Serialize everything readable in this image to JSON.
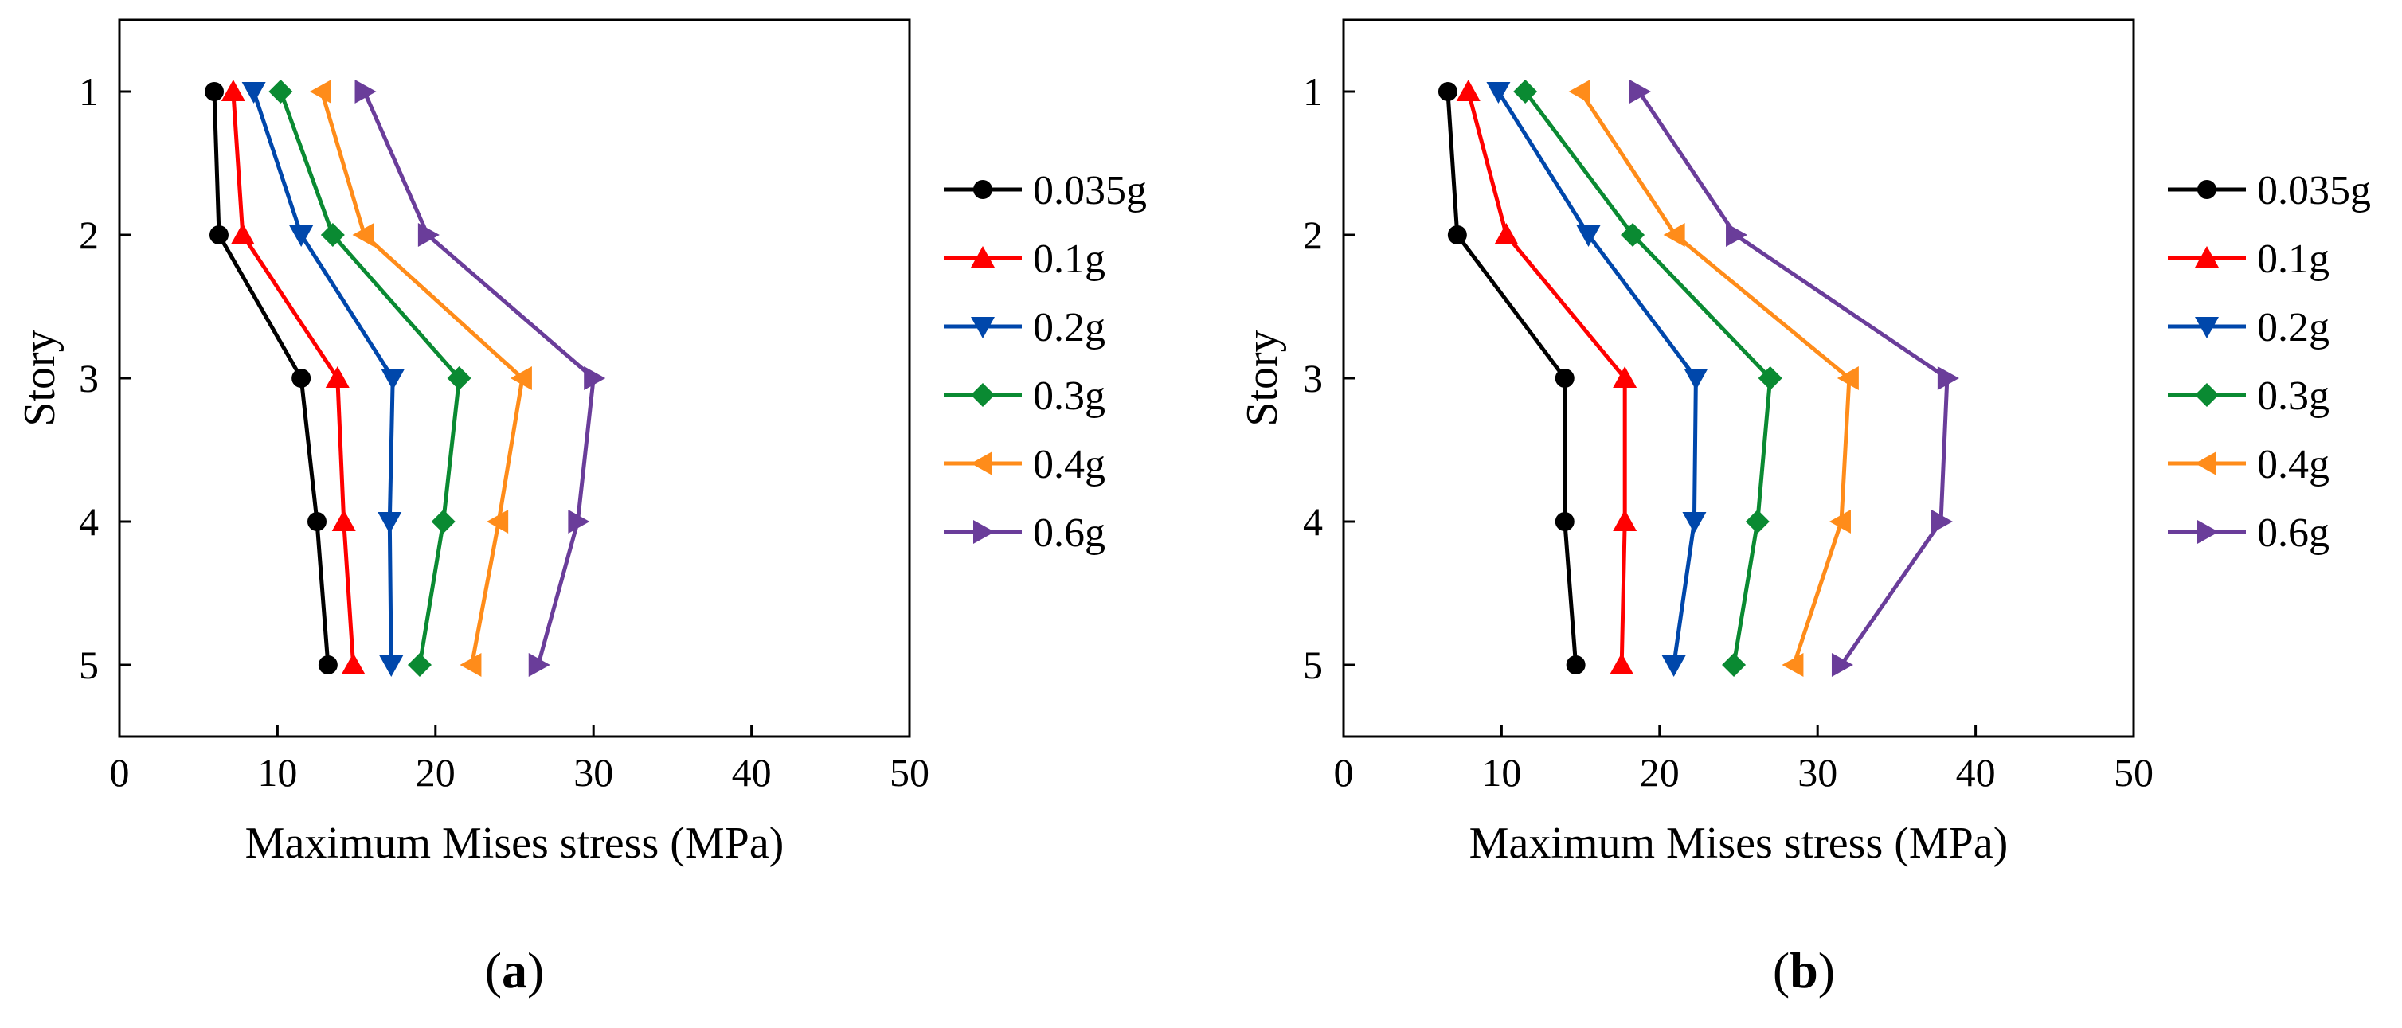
{
  "chart_data": [
    {
      "type": "line",
      "panel_label": "a",
      "xlabel": "Maximum Mises stress (MPa)",
      "ylabel": "Story",
      "xlim": [
        0,
        50
      ],
      "ylim": [
        1,
        5
      ],
      "y_inverted": true,
      "xticks": [
        0,
        10,
        20,
        30,
        40,
        50
      ],
      "yticks": [
        1,
        2,
        3,
        4,
        5
      ],
      "grid": false,
      "legend_position": "right-outside",
      "series": [
        {
          "name": "0.035g",
          "color": "#000000",
          "marker": "circle",
          "x": [
            6.0,
            6.3,
            11.5,
            12.5,
            13.2
          ],
          "y": [
            1,
            2,
            3,
            4,
            5
          ]
        },
        {
          "name": "0.1g",
          "color": "#ff0000",
          "marker": "triangle-up",
          "x": [
            7.2,
            7.8,
            13.8,
            14.2,
            14.8
          ],
          "y": [
            1,
            2,
            3,
            4,
            5
          ]
        },
        {
          "name": "0.2g",
          "color": "#0047ab",
          "marker": "triangle-down",
          "x": [
            8.5,
            11.5,
            17.3,
            17.1,
            17.2
          ],
          "y": [
            1,
            2,
            3,
            4,
            5
          ]
        },
        {
          "name": "0.3g",
          "color": "#0a8a32",
          "marker": "diamond",
          "x": [
            10.2,
            13.5,
            21.5,
            20.5,
            19.0
          ],
          "y": [
            1,
            2,
            3,
            4,
            5
          ]
        },
        {
          "name": "0.4g",
          "color": "#ff8c1a",
          "marker": "triangle-left",
          "x": [
            12.8,
            15.5,
            25.5,
            24.0,
            22.3
          ],
          "y": [
            1,
            2,
            3,
            4,
            5
          ]
        },
        {
          "name": "0.6g",
          "color": "#6a3d9a",
          "marker": "triangle-right",
          "x": [
            15.5,
            19.5,
            30.0,
            29.0,
            26.5
          ],
          "y": [
            1,
            2,
            3,
            4,
            5
          ]
        }
      ]
    },
    {
      "type": "line",
      "panel_label": "b",
      "xlabel": "Maximum Mises stress (MPa)",
      "ylabel": "Story",
      "xlim": [
        0,
        50
      ],
      "ylim": [
        1,
        5
      ],
      "y_inverted": true,
      "xticks": [
        0,
        10,
        20,
        30,
        40,
        50
      ],
      "yticks": [
        1,
        2,
        3,
        4,
        5
      ],
      "grid": false,
      "legend_position": "right-outside",
      "series": [
        {
          "name": "0.035g",
          "color": "#000000",
          "marker": "circle",
          "x": [
            6.6,
            7.2,
            14.0,
            14.0,
            14.7
          ],
          "y": [
            1,
            2,
            3,
            4,
            5
          ]
        },
        {
          "name": "0.1g",
          "color": "#ff0000",
          "marker": "triangle-up",
          "x": [
            7.9,
            10.3,
            17.8,
            17.8,
            17.6
          ],
          "y": [
            1,
            2,
            3,
            4,
            5
          ]
        },
        {
          "name": "0.2g",
          "color": "#0047ab",
          "marker": "triangle-down",
          "x": [
            9.8,
            15.5,
            22.3,
            22.2,
            20.9
          ],
          "y": [
            1,
            2,
            3,
            4,
            5
          ]
        },
        {
          "name": "0.3g",
          "color": "#0a8a32",
          "marker": "diamond",
          "x": [
            11.5,
            18.3,
            27.0,
            26.2,
            24.7
          ],
          "y": [
            1,
            2,
            3,
            4,
            5
          ]
        },
        {
          "name": "0.4g",
          "color": "#ff8c1a",
          "marker": "triangle-left",
          "x": [
            15.0,
            21.0,
            32.0,
            31.5,
            28.5
          ],
          "y": [
            1,
            2,
            3,
            4,
            5
          ]
        },
        {
          "name": "0.6g",
          "color": "#6a3d9a",
          "marker": "triangle-right",
          "x": [
            18.7,
            24.8,
            38.2,
            37.8,
            31.5
          ],
          "y": [
            1,
            2,
            3,
            4,
            5
          ]
        }
      ]
    }
  ]
}
